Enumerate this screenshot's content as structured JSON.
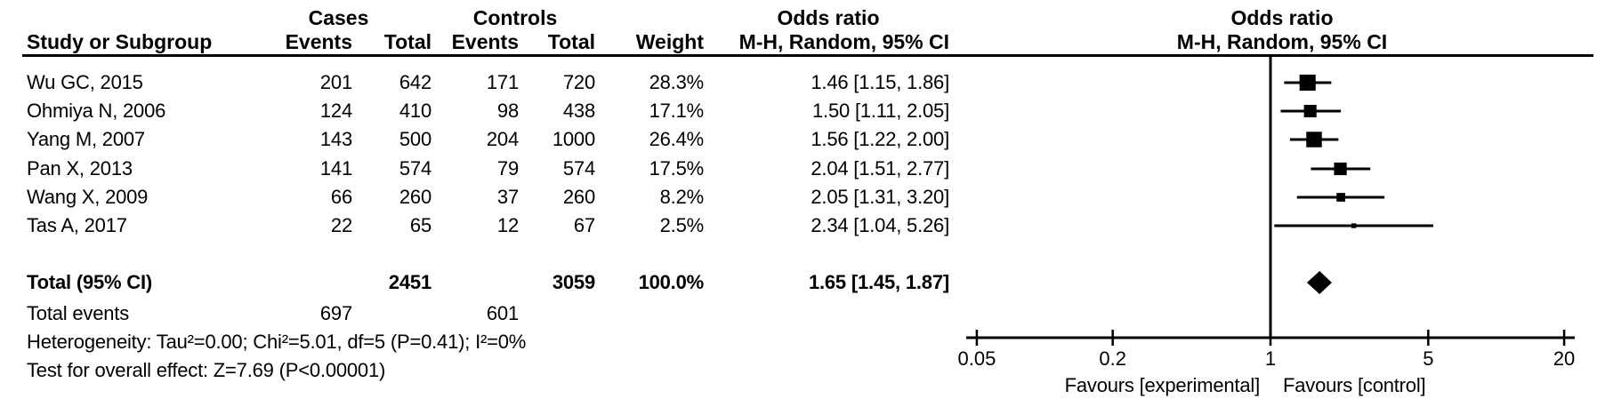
{
  "colors": {
    "ink": "#000000",
    "background": "#ffffff"
  },
  "table": {
    "group_headers": [
      {
        "label": "Cases"
      },
      {
        "label": "Controls"
      },
      {
        "label": "Odds ratio"
      },
      {
        "label": "Odds ratio"
      }
    ],
    "column_headers": {
      "study": "Study or Subgroup",
      "cases_events": "Events",
      "cases_total": "Total",
      "controls_events": "Events",
      "controls_total": "Total",
      "weight": "Weight",
      "or_ci": "M-H, Random, 95% CI",
      "or_ci_plot": "M-H, Random, 95% CI"
    },
    "studies": [
      {
        "name": "Wu GC, 2015",
        "cases_events": "201",
        "cases_total": "642",
        "controls_events": "171",
        "controls_total": "720",
        "weight": "28.3%",
        "or_ci": "1.46 [1.15, 1.86]"
      },
      {
        "name": "Ohmiya N, 2006",
        "cases_events": "124",
        "cases_total": "410",
        "controls_events": "98",
        "controls_total": "438",
        "weight": "17.1%",
        "or_ci": "1.50 [1.11, 2.05]"
      },
      {
        "name": "Yang M, 2007",
        "cases_events": "143",
        "cases_total": "500",
        "controls_events": "204",
        "controls_total": "1000",
        "weight": "26.4%",
        "or_ci": "1.56 [1.22, 2.00]"
      },
      {
        "name": "Pan X, 2013",
        "cases_events": "141",
        "cases_total": "574",
        "controls_events": "79",
        "controls_total": "574",
        "weight": "17.5%",
        "or_ci": "2.04 [1.51, 2.77]"
      },
      {
        "name": "Wang X, 2009",
        "cases_events": "66",
        "cases_total": "260",
        "controls_events": "37",
        "controls_total": "260",
        "weight": "8.2%",
        "or_ci": "2.05 [1.31, 3.20]"
      },
      {
        "name": "Tas A, 2017",
        "cases_events": "22",
        "cases_total": "65",
        "controls_events": "12",
        "controls_total": "67",
        "weight": "2.5%",
        "or_ci": "2.34 [1.04, 5.26]"
      }
    ],
    "total_row": {
      "label": "Total (95% CI)",
      "cases_total": "2451",
      "controls_total": "3059",
      "weight": "100.0%",
      "or_ci": "1.65 [1.45, 1.87]"
    },
    "total_events": {
      "label": "Total events",
      "cases": "697",
      "controls": "601"
    },
    "heterogeneity": "Heterogeneity: Tau²=0.00; Chi²=5.01, df=5 (P=0.41); I²=0%",
    "overall_effect": "Test for overall effect: Z=7.69 (P<0.00001)"
  },
  "plot": {
    "tick_labels": [
      "0.05",
      "0.2",
      "1",
      "5",
      "20"
    ],
    "favours_left": "Favours [experimental]",
    "favours_right": "Favours [control]"
  },
  "chart_data": {
    "type": "scatter",
    "subtype": "forest_plot_meta_analysis",
    "title": "Odds ratio  M-H, Random, 95% CI",
    "x_scale": "log",
    "x_ticks": [
      0.05,
      0.2,
      1,
      5,
      20
    ],
    "x_range": [
      0.05,
      20
    ],
    "null_line": 1,
    "xlabel_left": "Favours [experimental]",
    "xlabel_right": "Favours [control]",
    "effect_measure": "Odds ratio, Mantel-Haenszel, Random effects, 95% CI",
    "studies": [
      {
        "study": "Wu GC, 2015",
        "or": 1.46,
        "ci": [
          1.15,
          1.86
        ],
        "weight_pct": 28.3,
        "cases_events": 201,
        "cases_total": 642,
        "controls_events": 171,
        "controls_total": 720
      },
      {
        "study": "Ohmiya N, 2006",
        "or": 1.5,
        "ci": [
          1.11,
          2.05
        ],
        "weight_pct": 17.1,
        "cases_events": 124,
        "cases_total": 410,
        "controls_events": 98,
        "controls_total": 438
      },
      {
        "study": "Yang M, 2007",
        "or": 1.56,
        "ci": [
          1.22,
          2.0
        ],
        "weight_pct": 26.4,
        "cases_events": 143,
        "cases_total": 500,
        "controls_events": 204,
        "controls_total": 1000
      },
      {
        "study": "Pan X, 2013",
        "or": 2.04,
        "ci": [
          1.51,
          2.77
        ],
        "weight_pct": 17.5,
        "cases_events": 141,
        "cases_total": 574,
        "controls_events": 79,
        "controls_total": 574
      },
      {
        "study": "Wang X, 2009",
        "or": 2.05,
        "ci": [
          1.31,
          3.2
        ],
        "weight_pct": 8.2,
        "cases_events": 66,
        "cases_total": 260,
        "controls_events": 37,
        "controls_total": 260
      },
      {
        "study": "Tas A, 2017",
        "or": 2.34,
        "ci": [
          1.04,
          5.26
        ],
        "weight_pct": 2.5,
        "cases_events": 22,
        "cases_total": 65,
        "controls_events": 12,
        "controls_total": 67
      }
    ],
    "total": {
      "label": "Total (95% CI)",
      "or": 1.65,
      "ci": [
        1.45,
        1.87
      ],
      "weight_pct": 100.0,
      "cases_events": 697,
      "cases_total": 2451,
      "controls_events": 601,
      "controls_total": 3059
    },
    "heterogeneity": "Tau²=0.00; Chi²=5.01, df=5 (P=0.41); I²=0%",
    "overall_effect": "Z=7.69 (P<0.00001)"
  }
}
